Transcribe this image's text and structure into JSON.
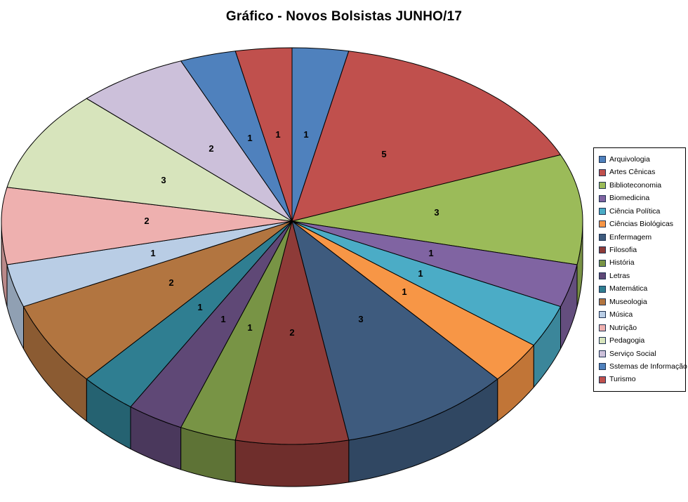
{
  "title": "Gráfico - Novos Bolsistas JUNHO/17",
  "chart_data": {
    "type": "pie",
    "style": "3d",
    "title": "Gráfico - Novos Bolsistas JUNHO/17",
    "direction": "clockwise",
    "start_angle_deg": 0,
    "total": 32,
    "categories": [
      "Arquivologia",
      "Artes Cênicas",
      "Biblioteconomia",
      "Biomedicina",
      "Ciência Política",
      "Ciências Biológicas",
      "Enfermagem",
      "Filosofia",
      "História",
      "Letras",
      "Matemática",
      "Museologia",
      "Música",
      "Nutrição",
      "Pedagogia",
      "Serviço Social",
      "Sstemas de Informação",
      "Turismo"
    ],
    "values": [
      1,
      5,
      3,
      1,
      1,
      1,
      3,
      2,
      1,
      1,
      1,
      2,
      1,
      2,
      3,
      2,
      1,
      1
    ],
    "colors": [
      "#4F81BD",
      "#C0504D",
      "#9BBB59",
      "#8064A2",
      "#4BACC6",
      "#F79646",
      "#3E5B7E",
      "#8E3B38",
      "#789445",
      "#5F4876",
      "#2F7E91",
      "#B27540",
      "#B9CDE5",
      "#EEB0AF",
      "#D7E4BC",
      "#CCC0DA",
      "#4F81BD",
      "#C0504D"
    ],
    "data_labels_shown": true,
    "data_label_color": "#000000",
    "slice_border_color": "#000000",
    "legend_position": "right",
    "legend_border_color": "#000000",
    "background_color": "#ffffff"
  }
}
